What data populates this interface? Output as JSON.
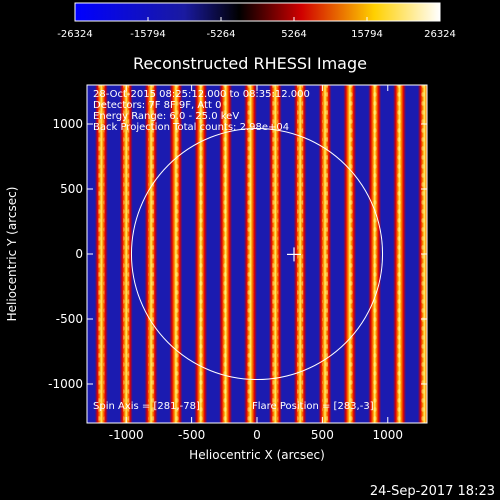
{
  "chart_data": {
    "type": "heatmap",
    "title": "Reconstructed RHESSI Image",
    "xlabel": "Heliocentric X (arcsec)",
    "ylabel": "Heliocentric Y (arcsec)",
    "xlim": [
      -1300,
      1300
    ],
    "ylim": [
      -1300,
      1300
    ],
    "x_ticks": [
      -1000,
      -500,
      0,
      500,
      1000
    ],
    "y_ticks": [
      -1000,
      -500,
      0,
      500,
      1000
    ],
    "colorbar": {
      "range": [
        -26324,
        26324
      ],
      "tick_values": [
        -26324,
        -15794,
        -5264,
        5264,
        15794,
        26324
      ],
      "tick_labels": [
        "-26324",
        "-15794",
        "-5264",
        "5264",
        "15794",
        "26324"
      ],
      "colors": [
        "#0000ff",
        "#000000",
        "#ff0000",
        "#ffff00",
        "#ffffff"
      ]
    },
    "stripe_centers_x": [
      -1190,
      -1000,
      -810,
      -620,
      -430,
      -240,
      -50,
      140,
      330,
      520,
      710,
      900,
      1090,
      1280
    ],
    "solar_disk_radius": 960,
    "flare_position": [
      283,
      -3
    ],
    "annotations": [
      "28-Oct-2015 08:25:12.000 to 08:35:12.000",
      "Detectors: 7F 8F 9F, Att 0",
      "Energy Range: 6.0 - 25.0 keV",
      "Back Projection    Total counts: 2.98e+04",
      "Spin Axis = [281,-78]",
      "Flare Position = [283,-3]"
    ]
  },
  "footer_timestamp": "24-Sep-2017 18:23"
}
